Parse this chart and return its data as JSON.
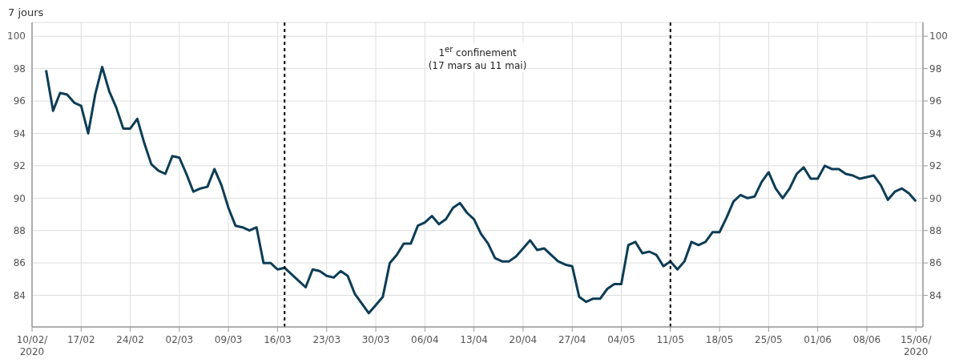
{
  "chart_data": {
    "type": "line",
    "title": "7 jours",
    "x": [
      "2020-02-12",
      "2020-02-13",
      "2020-02-14",
      "2020-02-15",
      "2020-02-16",
      "2020-02-17",
      "2020-02-18",
      "2020-02-19",
      "2020-02-20",
      "2020-02-21",
      "2020-02-22",
      "2020-02-23",
      "2020-02-24",
      "2020-02-25",
      "2020-02-26",
      "2020-02-27",
      "2020-02-28",
      "2020-02-29",
      "2020-03-01",
      "2020-03-02",
      "2020-03-03",
      "2020-03-04",
      "2020-03-05",
      "2020-03-06",
      "2020-03-07",
      "2020-03-08",
      "2020-03-09",
      "2020-03-10",
      "2020-03-11",
      "2020-03-12",
      "2020-03-13",
      "2020-03-14",
      "2020-03-15",
      "2020-03-16",
      "2020-03-17",
      "2020-03-18",
      "2020-03-19",
      "2020-03-20",
      "2020-03-21",
      "2020-03-22",
      "2020-03-23",
      "2020-03-24",
      "2020-03-25",
      "2020-03-26",
      "2020-03-27",
      "2020-03-28",
      "2020-03-29",
      "2020-03-30",
      "2020-03-31",
      "2020-04-01",
      "2020-04-02",
      "2020-04-03",
      "2020-04-04",
      "2020-04-05",
      "2020-04-06",
      "2020-04-07",
      "2020-04-08",
      "2020-04-09",
      "2020-04-10",
      "2020-04-11",
      "2020-04-12",
      "2020-04-13",
      "2020-04-14",
      "2020-04-15",
      "2020-04-16",
      "2020-04-17",
      "2020-04-18",
      "2020-04-19",
      "2020-04-20",
      "2020-04-21",
      "2020-04-22",
      "2020-04-23",
      "2020-04-24",
      "2020-04-25",
      "2020-04-26",
      "2020-04-27",
      "2020-04-28",
      "2020-04-29",
      "2020-04-30",
      "2020-05-01",
      "2020-05-02",
      "2020-05-03",
      "2020-05-04",
      "2020-05-05",
      "2020-05-06",
      "2020-05-07",
      "2020-05-08",
      "2020-05-09",
      "2020-05-10",
      "2020-05-11",
      "2020-05-12",
      "2020-05-13",
      "2020-05-14",
      "2020-05-15",
      "2020-05-16",
      "2020-05-17",
      "2020-05-18",
      "2020-05-19",
      "2020-05-20",
      "2020-05-21",
      "2020-05-22",
      "2020-05-23",
      "2020-05-24",
      "2020-05-25",
      "2020-05-26",
      "2020-05-27",
      "2020-05-28",
      "2020-05-29",
      "2020-05-30",
      "2020-05-31",
      "2020-06-01",
      "2020-06-02",
      "2020-06-03",
      "2020-06-04",
      "2020-06-05",
      "2020-06-06",
      "2020-06-07",
      "2020-06-08",
      "2020-06-09",
      "2020-06-10",
      "2020-06-11",
      "2020-06-12",
      "2020-06-13",
      "2020-06-14",
      "2020-06-15"
    ],
    "series": [
      {
        "color": "#0d3d56",
        "values": [
          97.9,
          95.4,
          96.5,
          96.4,
          95.9,
          95.7,
          94.0,
          96.4,
          98.1,
          96.6,
          95.6,
          94.3,
          94.3,
          94.9,
          93.4,
          92.1,
          91.7,
          91.5,
          92.6,
          92.5,
          91.5,
          90.4,
          90.6,
          90.7,
          91.8,
          90.8,
          89.4,
          88.3,
          88.2,
          88.0,
          88.2,
          86.0,
          86.0,
          85.6,
          85.7,
          85.3,
          84.9,
          84.5,
          85.6,
          85.5,
          85.2,
          85.1,
          85.5,
          85.2,
          84.1,
          83.5,
          82.9,
          83.4,
          83.9,
          86.0,
          86.5,
          87.2,
          87.2,
          88.3,
          88.5,
          88.9,
          88.4,
          88.7,
          89.4,
          89.7,
          89.1,
          88.7,
          87.8,
          87.2,
          86.3,
          86.1,
          86.1,
          86.4,
          86.9,
          87.4,
          86.8,
          86.9,
          86.5,
          86.1,
          85.9,
          85.8,
          83.9,
          83.6,
          83.8,
          83.8,
          84.4,
          84.7,
          84.7,
          87.1,
          87.3,
          86.6,
          86.7,
          86.5,
          85.8,
          86.1,
          85.6,
          86.1,
          87.3,
          87.1,
          87.3,
          87.9,
          87.9,
          88.8,
          89.8,
          90.2,
          90.0,
          90.1,
          91.0,
          91.6,
          90.6,
          90.0,
          90.6,
          91.5,
          91.9,
          91.2,
          91.2,
          92.0,
          91.8,
          91.8,
          91.5,
          91.4,
          91.2,
          91.3,
          91.4,
          90.8,
          89.9,
          90.4,
          90.6,
          90.3,
          89.8
        ]
      }
    ],
    "xlim": [
      "2020-02-10",
      "2020-06-16"
    ],
    "xticks": [
      {
        "value": "2020-02-10",
        "label": "10/02/\n2020"
      },
      {
        "value": "2020-02-17",
        "label": "17/02"
      },
      {
        "value": "2020-02-24",
        "label": "24/02"
      },
      {
        "value": "2020-03-02",
        "label": "02/03"
      },
      {
        "value": "2020-03-09",
        "label": "09/03"
      },
      {
        "value": "2020-03-16",
        "label": "16/03"
      },
      {
        "value": "2020-03-23",
        "label": "23/03"
      },
      {
        "value": "2020-03-30",
        "label": "30/03"
      },
      {
        "value": "2020-04-06",
        "label": "06/04"
      },
      {
        "value": "2020-04-13",
        "label": "13/04"
      },
      {
        "value": "2020-04-20",
        "label": "20/04"
      },
      {
        "value": "2020-04-27",
        "label": "27/04"
      },
      {
        "value": "2020-05-04",
        "label": "04/05"
      },
      {
        "value": "2020-05-11",
        "label": "11/05"
      },
      {
        "value": "2020-05-18",
        "label": "18/05"
      },
      {
        "value": "2020-05-25",
        "label": "25/05"
      },
      {
        "value": "2020-06-01",
        "label": "01/06"
      },
      {
        "value": "2020-06-08",
        "label": "08/06"
      },
      {
        "value": "2020-06-15",
        "label": "15/06/\n2020"
      }
    ],
    "ylim": [
      82.05,
      100.85
    ],
    "yticks": [
      84,
      86,
      88,
      90,
      92,
      94,
      96,
      98,
      100
    ],
    "y2lim": [
      82.05,
      100.85
    ],
    "y2ticks": [
      84,
      86,
      88,
      90,
      92,
      94,
      96,
      98,
      100
    ],
    "ref_lines": [
      {
        "axis": "x",
        "value": "2020-03-17",
        "label": null,
        "color": "#000000",
        "line_style": "dashed"
      },
      {
        "axis": "x",
        "value": "2020-05-11",
        "label": null,
        "color": "#000000",
        "line_style": "dashed"
      }
    ],
    "annotations": [
      "1$^{er}$ confinement\n(17 mars au 11 mai)"
    ],
    "grid": true,
    "marker": "none",
    "line_style": "solid"
  }
}
